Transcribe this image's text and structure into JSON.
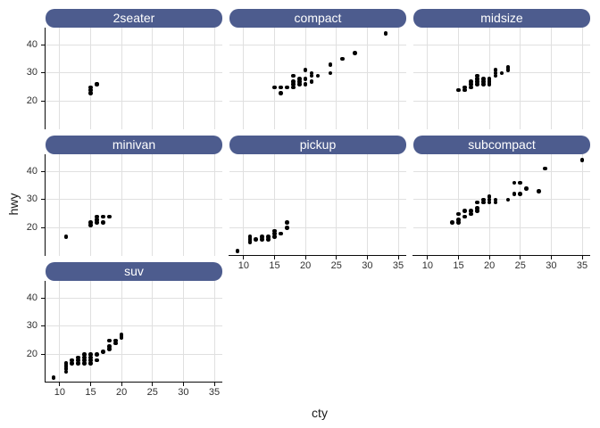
{
  "axis": {
    "x_title": "cty",
    "y_title": "hwy",
    "x_ticks": [
      10,
      15,
      20,
      25,
      30,
      35
    ],
    "y_ticks": [
      20,
      30,
      40
    ],
    "x_range": [
      7.7,
      36.3
    ],
    "y_range": [
      10.2,
      46.0
    ]
  },
  "colors": {
    "strip_fill": "#4d5c8e",
    "strip_text": "#ffffff",
    "gridline": "#e0e0e0",
    "point": "#000000",
    "axis_line": "#0a0a0a",
    "tick_label": "#303030",
    "panel_bg": "#ffffff"
  },
  "chart_data": {
    "type": "scatter",
    "x": "cty",
    "y": "hwy",
    "facet_variable": "class",
    "ncol": 3,
    "grid": "major-only",
    "legend": "none",
    "facets": [
      {
        "name": "2seater",
        "points": [
          [
            15,
            23
          ],
          [
            15,
            24
          ],
          [
            15,
            25
          ],
          [
            16,
            26
          ],
          [
            16,
            26
          ]
        ]
      },
      {
        "name": "compact",
        "points": [
          [
            15,
            25
          ],
          [
            16,
            23
          ],
          [
            16,
            25
          ],
          [
            17,
            25
          ],
          [
            18,
            25
          ],
          [
            18,
            26
          ],
          [
            18,
            27
          ],
          [
            18,
            29
          ],
          [
            19,
            26
          ],
          [
            19,
            27
          ],
          [
            19,
            28
          ],
          [
            20,
            26
          ],
          [
            20,
            28
          ],
          [
            20,
            31
          ],
          [
            21,
            27
          ],
          [
            21,
            29
          ],
          [
            21,
            30
          ],
          [
            22,
            29
          ],
          [
            24,
            30
          ],
          [
            24,
            33
          ],
          [
            26,
            35
          ],
          [
            28,
            37
          ],
          [
            33,
            44
          ]
        ]
      },
      {
        "name": "midsize",
        "points": [
          [
            15,
            24
          ],
          [
            16,
            24
          ],
          [
            16,
            25
          ],
          [
            17,
            25
          ],
          [
            17,
            26
          ],
          [
            17,
            27
          ],
          [
            18,
            26
          ],
          [
            18,
            27
          ],
          [
            18,
            28
          ],
          [
            18,
            29
          ],
          [
            19,
            26
          ],
          [
            19,
            27
          ],
          [
            19,
            28
          ],
          [
            20,
            26
          ],
          [
            20,
            27
          ],
          [
            20,
            28
          ],
          [
            21,
            29
          ],
          [
            21,
            30
          ],
          [
            21,
            31
          ],
          [
            22,
            30
          ],
          [
            23,
            31
          ],
          [
            23,
            32
          ]
        ]
      },
      {
        "name": "minivan",
        "points": [
          [
            11,
            17
          ],
          [
            15,
            21
          ],
          [
            15,
            22
          ],
          [
            16,
            22
          ],
          [
            16,
            23
          ],
          [
            16,
            24
          ],
          [
            17,
            22
          ],
          [
            17,
            24
          ],
          [
            18,
            24
          ]
        ]
      },
      {
        "name": "pickup",
        "points": [
          [
            9,
            12
          ],
          [
            11,
            15
          ],
          [
            11,
            16
          ],
          [
            11,
            17
          ],
          [
            12,
            16
          ],
          [
            13,
            16
          ],
          [
            13,
            17
          ],
          [
            14,
            16
          ],
          [
            14,
            17
          ],
          [
            15,
            17
          ],
          [
            15,
            18
          ],
          [
            15,
            19
          ],
          [
            16,
            18
          ],
          [
            17,
            20
          ],
          [
            17,
            22
          ]
        ]
      },
      {
        "name": "subcompact",
        "points": [
          [
            14,
            22
          ],
          [
            15,
            22
          ],
          [
            15,
            23
          ],
          [
            15,
            25
          ],
          [
            16,
            24
          ],
          [
            16,
            26
          ],
          [
            17,
            25
          ],
          [
            17,
            26
          ],
          [
            18,
            26
          ],
          [
            18,
            27
          ],
          [
            18,
            29
          ],
          [
            19,
            29
          ],
          [
            19,
            30
          ],
          [
            20,
            29
          ],
          [
            20,
            30
          ],
          [
            20,
            31
          ],
          [
            21,
            29
          ],
          [
            21,
            30
          ],
          [
            23,
            30
          ],
          [
            24,
            32
          ],
          [
            24,
            36
          ],
          [
            25,
            32
          ],
          [
            25,
            36
          ],
          [
            26,
            34
          ],
          [
            28,
            33
          ],
          [
            29,
            41
          ],
          [
            35,
            44
          ]
        ]
      },
      {
        "name": "suv",
        "points": [
          [
            9,
            12
          ],
          [
            11,
            14
          ],
          [
            11,
            15
          ],
          [
            11,
            16
          ],
          [
            11,
            17
          ],
          [
            12,
            17
          ],
          [
            12,
            18
          ],
          [
            13,
            17
          ],
          [
            13,
            18
          ],
          [
            13,
            19
          ],
          [
            14,
            17
          ],
          [
            14,
            18
          ],
          [
            14,
            19
          ],
          [
            14,
            20
          ],
          [
            15,
            17
          ],
          [
            15,
            18
          ],
          [
            15,
            19
          ],
          [
            15,
            20
          ],
          [
            16,
            18
          ],
          [
            16,
            20
          ],
          [
            17,
            21
          ],
          [
            18,
            22
          ],
          [
            18,
            23
          ],
          [
            18,
            25
          ],
          [
            19,
            24
          ],
          [
            19,
            25
          ],
          [
            20,
            26
          ],
          [
            20,
            27
          ]
        ]
      }
    ]
  }
}
